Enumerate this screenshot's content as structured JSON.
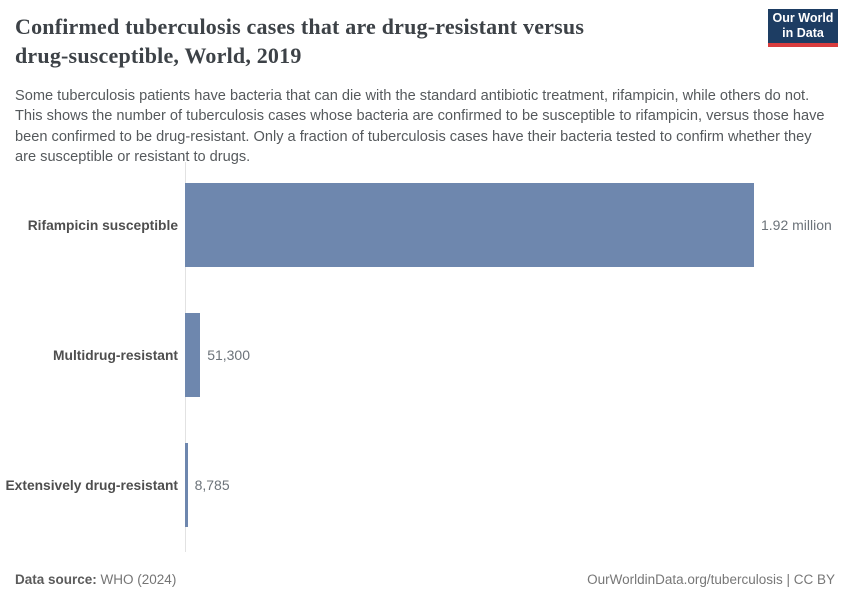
{
  "page": {
    "title_lines": [
      "Confirmed tuberculosis cases that are drug-resistant versus",
      "drug-susceptible, World, 2019"
    ],
    "subtitle": "Some tuberculosis patients have bacteria that can die with the standard antibiotic treatment, rifampicin, while others do not. This shows the number of tuberculosis cases whose bacteria are confirmed to be susceptible to rifampicin, versus those have been confirmed to be drug-resistant. Only a fraction of tuberculosis cases have their bacteria tested to confirm whether they are susceptible or resistant to drugs.",
    "logo": {
      "line1": "Our World",
      "line2": "in Data",
      "bg_color": "#1d3d63",
      "stripe_color": "#d93d3e"
    }
  },
  "chart_data": {
    "type": "bar",
    "orientation": "horizontal",
    "title": "Confirmed tuberculosis cases that are drug-resistant versus drug-susceptible, World, 2019",
    "categories": [
      "Rifampicin susceptible",
      "Multidrug-resistant",
      "Extensively drug-resistant"
    ],
    "values": [
      1920000,
      51300,
      8785
    ],
    "value_labels": [
      "1.92 million",
      "51,300",
      "8,785"
    ],
    "xlim": [
      0,
      1920000
    ],
    "bar_color": "#6e87ae",
    "axis_color": "#e2e2e2",
    "grid": false,
    "legend": "none"
  },
  "footer": {
    "data_source_label": "Data source:",
    "data_source_value": "WHO (2024)",
    "url_text": "OurWorldinData.org/tuberculosis",
    "license_text": "CC BY",
    "separator": " | "
  }
}
